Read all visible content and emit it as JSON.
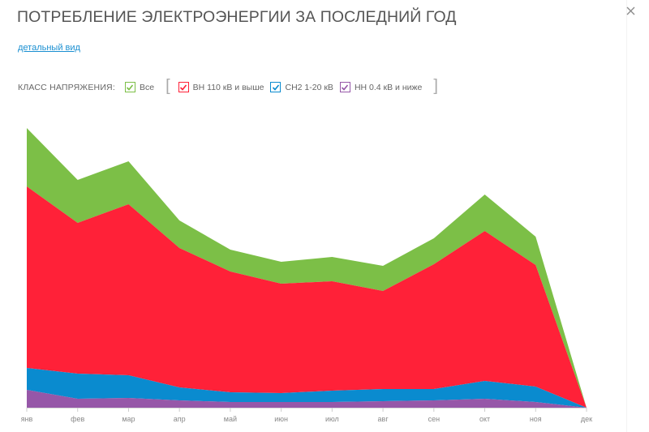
{
  "header": {
    "title": "ПОТРЕБЛЕНИЕ ЭЛЕКТРОЭНЕРГИИ ЗА ПОСЛЕДНИЙ ГОД",
    "close_icon": "close-icon",
    "detail_link": "детальный вид"
  },
  "legend": {
    "label": "КЛАСС НАПРЯЖЕНИЯ:",
    "open_bracket": "[",
    "close_bracket": "]",
    "items": [
      {
        "label": "Все",
        "color": "#7cbf47",
        "checked": true
      },
      {
        "label": "ВН 110 кВ и выше",
        "color": "#ff2138",
        "checked": true
      },
      {
        "label": "СН2 1-20 кВ",
        "color": "#0a8bcf",
        "checked": true
      },
      {
        "label": "НН 0.4 кВ и ниже",
        "color": "#9657a8",
        "checked": true
      }
    ]
  },
  "chart_data": {
    "type": "area",
    "stacked": true,
    "title": "ПОТРЕБЛЕНИЕ ЭЛЕКТРОЭНЕРГИИ ЗА ПОСЛЕДНИЙ ГОД",
    "xlabel": "",
    "ylabel": "",
    "y_axis_visible": false,
    "grid": false,
    "legend_position": "top",
    "categories": [
      "янв",
      "фев",
      "мар",
      "апр",
      "май",
      "июн",
      "июл",
      "авг",
      "сен",
      "окт",
      "ноя",
      "дек"
    ],
    "series": [
      {
        "name": "НН 0.4 кВ и ниже",
        "color": "#9657a8",
        "values": [
          22,
          11,
          12,
          9,
          7,
          7,
          7,
          8,
          9,
          11,
          7,
          0
        ]
      },
      {
        "name": "СН2 1-20 кВ",
        "color": "#0a8bcf",
        "values": [
          27,
          31,
          28,
          16,
          12,
          11,
          14,
          15,
          14,
          22,
          19,
          0
        ]
      },
      {
        "name": "ВН 110 кВ и выше",
        "color": "#ff2138",
        "values": [
          224,
          186,
          211,
          172,
          149,
          135,
          135,
          121,
          154,
          185,
          150,
          0
        ]
      },
      {
        "name": "Все (прочее)",
        "color": "#7cbf47",
        "values": [
          72,
          53,
          53,
          34,
          27,
          27,
          30,
          31,
          32,
          45,
          35,
          0
        ]
      }
    ],
    "totals": [
      345,
      281,
      304,
      231,
      195,
      180,
      186,
      175,
      209,
      263,
      211,
      0
    ],
    "ylim": [
      0,
      360
    ]
  }
}
